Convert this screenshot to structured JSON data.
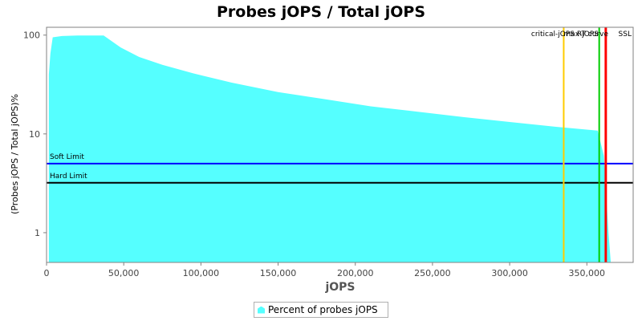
{
  "chart_data": {
    "type": "area",
    "title": "Probes jOPS / Total jOPS",
    "xlabel": "jOPS",
    "ylabel": "(Probes jOPS / Total jOPS)%",
    "xlim": [
      0,
      380000
    ],
    "ylim": [
      0.5,
      120
    ],
    "y_scale": "log",
    "grid": false,
    "legend_position": "bottom-center",
    "x_ticks": [
      "0",
      "50,000",
      "100,000",
      "150,000",
      "200,000",
      "250,000",
      "300,000",
      "350,000"
    ],
    "x_tick_values": [
      0,
      50000,
      100000,
      150000,
      200000,
      250000,
      300000,
      350000
    ],
    "y_ticks": [
      "1",
      "10",
      "100"
    ],
    "y_tick_values": [
      1,
      10,
      100
    ],
    "series": [
      {
        "name": "Percent of probes jOPS",
        "color": "#55ffff",
        "x": [
          1500,
          2500,
          4000,
          10000,
          20000,
          30000,
          37000,
          48000,
          60000,
          75000,
          95000,
          120000,
          150000,
          180000,
          210000,
          240000,
          270000,
          300000,
          330000,
          357000,
          361000,
          364000,
          365500
        ],
        "y": [
          40,
          65,
          95,
          98,
          99,
          99,
          99,
          75,
          60,
          50,
          41,
          33,
          26.5,
          22.5,
          19,
          16.8,
          14.8,
          13.2,
          11.8,
          10.8,
          6,
          1,
          0.5
        ]
      }
    ],
    "horizontal_lines": [
      {
        "label": "Soft Limit",
        "value": 5.0,
        "color": "#0000ff"
      },
      {
        "label": "Hard Limit",
        "value": 3.2,
        "color": "#000000"
      }
    ],
    "vertical_markers": [
      {
        "label": "critical-jOPS",
        "value": 335000,
        "color": "#ffcc00"
      },
      {
        "label": "max-jOPS",
        "value": 358000,
        "color": "#00cc00"
      },
      {
        "label": "RT curve",
        "value": 362000,
        "color": "#ff0000"
      },
      {
        "label": "SSL",
        "value": 362500,
        "color": "#ff0000"
      }
    ]
  }
}
